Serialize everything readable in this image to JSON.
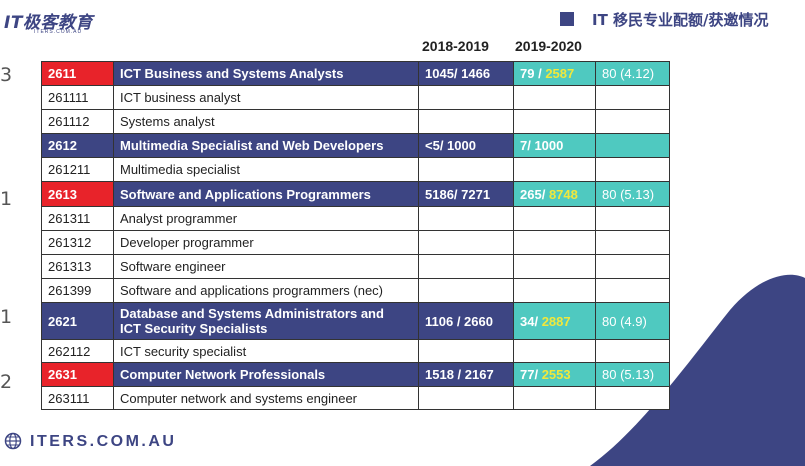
{
  "logo": {
    "name": "IT极客教育",
    "sub": "ITERS.COM.AU"
  },
  "title": "IT 移民专业配额/获邀情况",
  "years": [
    "2018-2019",
    "2019-2020"
  ],
  "side_marks": [
    "3",
    "1",
    "1",
    "2"
  ],
  "footer": "ITERS.COM.AU",
  "colors": {
    "navy": "#3d4583",
    "red": "#e8232a",
    "teal": "#4fc9c0",
    "yellow": "#f0e83c"
  },
  "rows": [
    {
      "type": "major",
      "red": true,
      "code": "2611",
      "name": "ICT Business and Systems Analysts",
      "y2018": "1045/ 1466",
      "inv": "79",
      "quota": "2587",
      "extra": "80 (4.12)"
    },
    {
      "type": "sub",
      "code": "261111",
      "name": "ICT business analyst"
    },
    {
      "type": "sub",
      "code": "261112",
      "name": "Systems analyst"
    },
    {
      "type": "major",
      "red": false,
      "code": "2612",
      "name": "Multimedia Specialist and Web Developers",
      "y2018": "<5/ 1000",
      "y2019": "7/ 1000",
      "extra": ""
    },
    {
      "type": "sub",
      "code": "261211",
      "name": "Multimedia specialist"
    },
    {
      "type": "major",
      "red": true,
      "code": "2613",
      "name": "Software and Applications Programmers",
      "y2018": "5186/ 7271",
      "inv": "265",
      "quota": "8748",
      "extra": "80 (5.13)"
    },
    {
      "type": "sub",
      "code": "261311",
      "name": "Analyst programmer"
    },
    {
      "type": "sub",
      "code": "261312",
      "name": "Developer programmer"
    },
    {
      "type": "sub",
      "code": "261313",
      "name": "Software engineer"
    },
    {
      "type": "sub",
      "code": "261399",
      "name": "Software and applications programmers (nec)"
    },
    {
      "type": "major",
      "red": false,
      "code": "2621",
      "name": "Database and Systems Administrators and",
      "name2": "ICT Security Specialists",
      "y2018": "1106 / 2660",
      "inv": "34",
      "quota": "2887",
      "extra": "80 (4.9)"
    },
    {
      "type": "sub",
      "code": "262112",
      "name": "ICT security specialist"
    },
    {
      "type": "major",
      "red": true,
      "code": "2631",
      "name": "Computer Network Professionals",
      "y2018": "1518 / 2167",
      "inv": "77",
      "quota": "2553",
      "extra": "80 (5.13)"
    },
    {
      "type": "sub",
      "code": "263111",
      "name": "Computer network and systems engineer"
    }
  ]
}
